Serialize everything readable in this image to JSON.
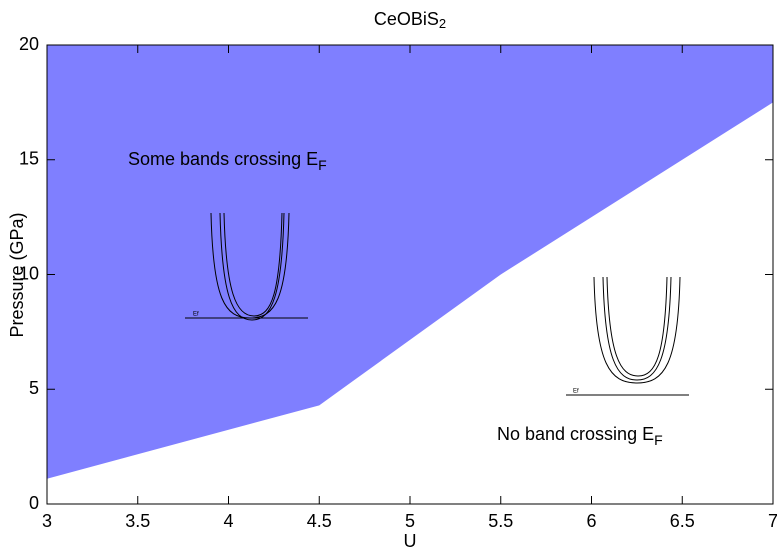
{
  "chart_data": {
    "type": "area",
    "title": {
      "text": "CeOBiS",
      "sub": "2"
    },
    "x_label": "U",
    "y_label": "Pressure (GPa)",
    "x": [
      3,
      4.5,
      5.5,
      7
    ],
    "values": [
      1.1,
      4.3,
      10,
      17.5
    ],
    "color": "#7f7fff",
    "fill": "above",
    "xlim": [
      3,
      7
    ],
    "xticks": [
      3,
      3.5,
      4,
      4.5,
      5,
      5.5,
      6,
      6.5,
      7
    ],
    "ylim": [
      0,
      20
    ],
    "yticks": [
      0,
      5,
      10,
      15,
      20
    ],
    "annotations": [
      {
        "text": "Some bands crossing E",
        "sub": "F"
      },
      {
        "text": "No band crossing E",
        "sub": "F"
      }
    ],
    "inset_labels": [
      "Ef",
      "Ef"
    ]
  }
}
